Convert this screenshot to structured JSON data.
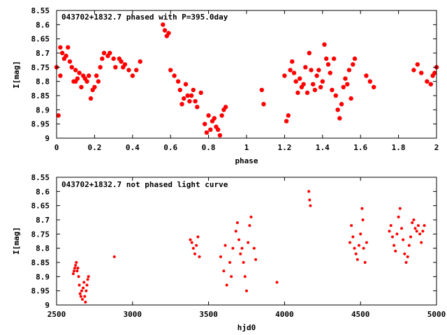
{
  "chart_data": [
    {
      "type": "scatter",
      "title": "043702+1832.7 phased with P=395.0day",
      "xlabel": "phase",
      "ylabel": "I[mag]",
      "xlim": [
        0,
        2
      ],
      "ylim": [
        8.55,
        9
      ],
      "y_inverted": true,
      "xticks": [
        "0",
        "0.2",
        "0.4",
        "0.6",
        "0.8",
        "1",
        "1.2",
        "1.4",
        "1.6",
        "1.8",
        "2"
      ],
      "yticks": [
        "8.55",
        "8.6",
        "8.65",
        "8.7",
        "8.75",
        "8.8",
        "8.85",
        "8.9",
        "8.95",
        "9"
      ],
      "grid": false,
      "marker_color": "#ff0000",
      "marker": "filled-circle-large",
      "x": [
        0.0,
        0.01,
        0.02,
        0.02,
        0.03,
        0.04,
        0.05,
        0.06,
        0.07,
        0.08,
        0.09,
        0.1,
        0.1,
        0.11,
        0.12,
        0.13,
        0.14,
        0.15,
        0.16,
        0.17,
        0.18,
        0.19,
        0.2,
        0.21,
        0.22,
        0.23,
        0.24,
        0.25,
        0.27,
        0.28,
        0.3,
        0.31,
        0.33,
        0.34,
        0.35,
        0.36,
        0.38,
        0.4,
        0.42,
        0.44,
        0.56,
        0.57,
        0.58,
        0.59,
        0.6,
        0.62,
        0.64,
        0.65,
        0.66,
        0.67,
        0.68,
        0.69,
        0.7,
        0.71,
        0.72,
        0.73,
        0.74,
        0.76,
        0.78,
        0.79,
        0.8,
        0.81,
        0.82,
        0.83,
        0.84,
        0.85,
        0.86,
        0.87,
        0.88,
        0.89,
        1.08,
        1.09,
        1.2,
        1.21,
        1.22,
        1.23,
        1.24,
        1.25,
        1.26,
        1.27,
        1.28,
        1.29,
        1.3,
        1.31,
        1.32,
        1.33,
        1.34,
        1.35,
        1.36,
        1.37,
        1.38,
        1.39,
        1.4,
        1.41,
        1.42,
        1.43,
        1.44,
        1.45,
        1.46,
        1.47,
        1.48,
        1.49,
        1.5,
        1.51,
        1.52,
        1.53,
        1.54,
        1.55,
        1.56,
        1.57,
        1.63,
        1.65,
        1.67,
        1.88,
        1.9,
        1.92,
        1.95,
        1.97,
        1.98,
        1.99,
        2.0
      ],
      "y": [
        8.75,
        8.92,
        8.68,
        8.78,
        8.7,
        8.72,
        8.71,
        8.68,
        8.73,
        8.75,
        8.8,
        8.76,
        8.8,
        8.79,
        8.77,
        8.82,
        8.78,
        8.79,
        8.8,
        8.78,
        8.86,
        8.83,
        8.82,
        8.78,
        8.8,
        8.75,
        8.72,
        8.7,
        8.71,
        8.7,
        8.72,
        8.75,
        8.72,
        8.73,
        8.75,
        8.74,
        8.76,
        8.78,
        8.76,
        8.73,
        8.6,
        8.62,
        8.64,
        8.63,
        8.76,
        8.78,
        8.8,
        8.83,
        8.88,
        8.86,
        8.81,
        8.85,
        8.87,
        8.85,
        8.83,
        8.87,
        8.89,
        8.84,
        8.95,
        8.98,
        8.92,
        8.97,
        8.94,
        8.93,
        8.96,
        8.97,
        8.99,
        8.92,
        8.9,
        8.89,
        8.83,
        8.88,
        8.78,
        8.94,
        8.92,
        8.76,
        8.73,
        8.77,
        8.8,
        8.84,
        8.79,
        8.82,
        8.81,
        8.75,
        8.84,
        8.7,
        8.76,
        8.81,
        8.83,
        8.78,
        8.76,
        8.82,
        8.8,
        8.67,
        8.72,
        8.74,
        8.77,
        8.83,
        8.72,
        8.85,
        8.9,
        8.93,
        8.88,
        8.82,
        8.79,
        8.81,
        8.76,
        8.86,
        8.74,
        8.72,
        8.78,
        8.8,
        8.82,
        8.76,
        8.74,
        8.77,
        8.8,
        8.81,
        8.78,
        8.77,
        8.75
      ]
    },
    {
      "type": "scatter",
      "title": "043702+1832.7 not phased light curve",
      "xlabel": "hjd0",
      "ylabel": "I[mag]",
      "xlim": [
        2500,
        5000
      ],
      "ylim": [
        8.55,
        9
      ],
      "y_inverted": true,
      "xticks": [
        "2500",
        "3000",
        "3500",
        "4000",
        "4500",
        "5000"
      ],
      "yticks": [
        "8.55",
        "8.6",
        "8.65",
        "8.7",
        "8.75",
        "8.8",
        "8.85",
        "8.9",
        "8.95",
        "9"
      ],
      "grid": false,
      "marker_color": "#ff0000",
      "marker": "filled-circle-small",
      "x": [
        2610,
        2615,
        2620,
        2625,
        2630,
        2635,
        2640,
        2645,
        2650,
        2655,
        2660,
        2665,
        2670,
        2675,
        2680,
        2685,
        2690,
        2695,
        2700,
        2705,
        2710,
        2880,
        3380,
        3390,
        3400,
        3410,
        3420,
        3430,
        3440,
        3580,
        3600,
        3610,
        3620,
        3640,
        3650,
        3660,
        3680,
        3690,
        3700,
        3710,
        3720,
        3730,
        3740,
        3750,
        3760,
        3770,
        3780,
        3800,
        3810,
        3950,
        4160,
        4165,
        4170,
        4430,
        4440,
        4450,
        4460,
        4470,
        4480,
        4490,
        4500,
        4510,
        4515,
        4520,
        4530,
        4540,
        4690,
        4700,
        4710,
        4720,
        4730,
        4740,
        4750,
        4760,
        4770,
        4780,
        4790,
        4800,
        4810,
        4820,
        4830,
        4840,
        4850,
        4860,
        4870,
        4880,
        4890,
        4900,
        4910,
        4920
      ],
      "y": [
        8.89,
        8.88,
        8.87,
        8.86,
        8.85,
        8.88,
        8.87,
        8.9,
        8.93,
        8.96,
        8.97,
        8.95,
        8.98,
        8.94,
        8.92,
        8.97,
        8.99,
        8.95,
        8.93,
        8.91,
        8.9,
        8.83,
        8.77,
        8.78,
        8.8,
        8.82,
        8.79,
        8.76,
        8.83,
        8.83,
        8.88,
        8.79,
        8.93,
        8.85,
        8.9,
        8.8,
        8.74,
        8.71,
        8.77,
        8.82,
        8.8,
        8.85,
        8.9,
        8.95,
        8.78,
        8.72,
        8.69,
        8.8,
        8.84,
        8.92,
        8.6,
        8.63,
        8.65,
        8.78,
        8.72,
        8.76,
        8.8,
        8.82,
        8.84,
        8.79,
        8.75,
        8.66,
        8.7,
        8.8,
        8.85,
        8.78,
        8.74,
        8.72,
        8.76,
        8.79,
        8.81,
        8.75,
        8.69,
        8.66,
        8.73,
        8.77,
        8.82,
        8.85,
        8.83,
        8.79,
        8.76,
        8.71,
        8.7,
        8.73,
        8.74,
        8.72,
        8.75,
        8.78,
        8.74,
        8.72
      ]
    }
  ]
}
